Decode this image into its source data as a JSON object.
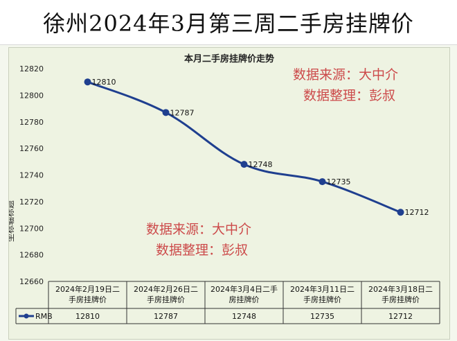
{
  "page": {
    "title": "徐州2024年3月第三周二手房挂牌价"
  },
  "watermark": {
    "line1": "数据来源：大中介",
    "line2": "数据整理：彭叔"
  },
  "chart_data": {
    "type": "line",
    "title": "本月二手房挂牌价走势",
    "ylabel": "坐标轴标题",
    "xlabel": "",
    "ylim": [
      12660,
      12820
    ],
    "yticks": [
      12660,
      12680,
      12700,
      12720,
      12740,
      12760,
      12780,
      12800,
      12820
    ],
    "categories": [
      "2024年2月19日二手房挂牌价",
      "2024年2月26日二手房挂牌价",
      "2024年3月4日二手房挂牌价",
      "2024年3月11日二手房挂牌价",
      "2024年3月18日二手房挂牌价"
    ],
    "category_lines": [
      [
        "2024年2月19日二",
        "手房挂牌价"
      ],
      [
        "2024年2月26日二",
        "手房挂牌价"
      ],
      [
        "2024年3月4日二手",
        "房挂牌价"
      ],
      [
        "2024年3月11日二",
        "手房挂牌价"
      ],
      [
        "2024年3月18日二",
        "手房挂牌价"
      ]
    ],
    "series": [
      {
        "name": "RMB",
        "values": [
          12810,
          12787,
          12748,
          12735,
          12712
        ],
        "color": "#1f3f8f"
      }
    ],
    "data_labels": true,
    "grid": false,
    "data_table": true
  }
}
